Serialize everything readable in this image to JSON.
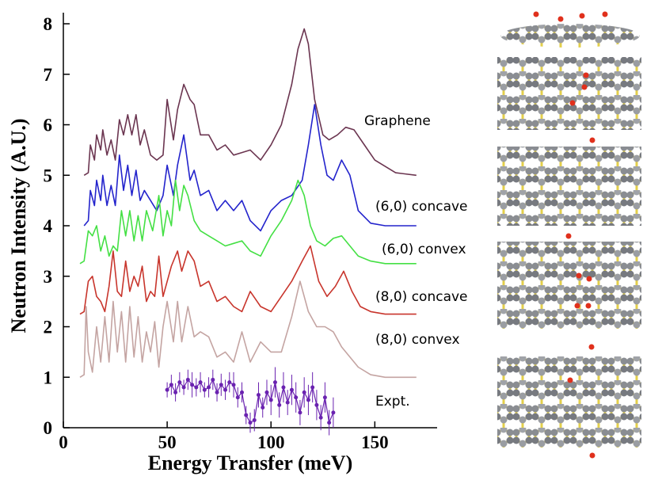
{
  "chart_data": {
    "type": "line",
    "xlabel": "Energy Transfer (meV)",
    "ylabel": "Neutron Intensity (A.U.)",
    "xlim": [
      0,
      180
    ],
    "ylim": [
      0,
      8
    ],
    "xticks": [
      0,
      50,
      100,
      150
    ],
    "yticks": [
      0,
      1,
      2,
      3,
      4,
      5,
      6,
      7,
      8
    ],
    "series": [
      {
        "name": "Graphene",
        "color": "#6b3550",
        "x": [
          10,
          12,
          13,
          15,
          16,
          18,
          19,
          21,
          23,
          25,
          27,
          29,
          31,
          33,
          35,
          37,
          39,
          42,
          45,
          48,
          50,
          53,
          55,
          58,
          61,
          63,
          66,
          70,
          74,
          78,
          82,
          86,
          90,
          95,
          100,
          105,
          110,
          113,
          116,
          118,
          121,
          125,
          128,
          132,
          136,
          140,
          145,
          150,
          160,
          170
        ],
        "values": [
          5.0,
          5.05,
          5.6,
          5.3,
          5.8,
          5.5,
          5.9,
          5.4,
          5.7,
          5.3,
          6.1,
          5.8,
          6.2,
          5.8,
          6.2,
          5.6,
          5.9,
          5.4,
          5.3,
          5.4,
          6.5,
          5.7,
          6.3,
          6.8,
          6.5,
          6.4,
          5.8,
          5.8,
          5.5,
          5.6,
          5.4,
          5.45,
          5.5,
          5.3,
          5.6,
          6.0,
          6.8,
          7.5,
          7.9,
          7.6,
          6.5,
          5.8,
          5.7,
          5.8,
          5.95,
          5.9,
          5.6,
          5.3,
          5.05,
          5.0
        ]
      },
      {
        "name": "(6,0) concave",
        "color": "#2323cc",
        "x": [
          10,
          12,
          13,
          15,
          16,
          18,
          19,
          21,
          23,
          25,
          27,
          29,
          31,
          33,
          35,
          37,
          39,
          42,
          45,
          48,
          50,
          53,
          55,
          58,
          61,
          63,
          66,
          70,
          74,
          78,
          82,
          86,
          90,
          95,
          100,
          105,
          110,
          115,
          118,
          121,
          124,
          127,
          130,
          134,
          138,
          142,
          148,
          155,
          162,
          170
        ],
        "values": [
          4.0,
          4.1,
          4.7,
          4.4,
          4.9,
          4.5,
          5.0,
          4.4,
          4.8,
          4.4,
          5.4,
          4.7,
          5.2,
          4.6,
          5.1,
          4.5,
          4.7,
          4.5,
          4.3,
          4.6,
          5.2,
          4.6,
          5.2,
          5.8,
          4.9,
          5.1,
          4.6,
          4.7,
          4.3,
          4.5,
          4.3,
          4.5,
          4.1,
          3.9,
          4.3,
          4.5,
          4.6,
          4.9,
          5.6,
          6.4,
          5.6,
          5.0,
          4.9,
          5.3,
          5.0,
          4.3,
          4.05,
          4.0,
          4.0,
          4.0
        ]
      },
      {
        "name": "(6,0) convex",
        "color": "#44e044",
        "x": [
          8,
          10,
          12,
          14,
          16,
          18,
          20,
          22,
          24,
          26,
          28,
          30,
          32,
          34,
          36,
          38,
          40,
          43,
          46,
          48,
          50,
          52,
          54,
          56,
          58,
          60,
          63,
          66,
          70,
          74,
          78,
          82,
          86,
          90,
          95,
          100,
          105,
          110,
          113,
          116,
          119,
          122,
          126,
          130,
          134,
          138,
          142,
          148,
          155,
          170
        ],
        "values": [
          3.25,
          3.3,
          3.9,
          3.8,
          4.0,
          3.5,
          3.8,
          3.4,
          3.6,
          3.5,
          4.3,
          3.8,
          4.3,
          3.7,
          4.2,
          3.7,
          4.3,
          3.9,
          4.6,
          3.8,
          4.3,
          4.0,
          4.9,
          4.3,
          4.8,
          4.6,
          4.1,
          3.9,
          3.8,
          3.7,
          3.6,
          3.65,
          3.7,
          3.5,
          3.4,
          3.8,
          4.1,
          4.5,
          4.9,
          4.6,
          4.0,
          3.7,
          3.6,
          3.75,
          3.8,
          3.6,
          3.4,
          3.3,
          3.25,
          3.25
        ]
      },
      {
        "name": "(8,0) concave",
        "color": "#c8352c",
        "x": [
          8,
          10,
          12,
          14,
          16,
          18,
          20,
          22,
          24,
          26,
          28,
          30,
          32,
          34,
          36,
          38,
          40,
          42,
          44,
          46,
          48,
          52,
          55,
          57,
          60,
          63,
          66,
          70,
          74,
          78,
          82,
          86,
          90,
          95,
          100,
          105,
          110,
          115,
          119,
          123,
          127,
          131,
          135,
          139,
          143,
          148,
          155,
          170
        ],
        "values": [
          2.25,
          2.3,
          2.9,
          3.0,
          2.6,
          2.5,
          2.3,
          2.8,
          3.5,
          2.7,
          2.6,
          3.3,
          2.7,
          3.0,
          2.8,
          3.2,
          2.5,
          2.7,
          2.6,
          3.4,
          2.6,
          3.2,
          3.5,
          3.1,
          3.5,
          3.3,
          2.8,
          2.9,
          2.5,
          2.6,
          2.4,
          2.3,
          2.7,
          2.4,
          2.3,
          2.6,
          2.9,
          3.3,
          3.6,
          2.9,
          2.6,
          2.8,
          3.1,
          2.7,
          2.4,
          2.3,
          2.25,
          2.25
        ]
      },
      {
        "name": "(8,0) convex",
        "color": "#c4a4a2",
        "x": [
          8,
          10,
          11,
          12,
          14,
          16,
          18,
          20,
          22,
          24,
          26,
          28,
          30,
          32,
          34,
          36,
          38,
          40,
          42,
          44,
          46,
          48,
          50,
          53,
          55,
          57,
          60,
          63,
          66,
          70,
          74,
          78,
          82,
          86,
          90,
          95,
          100,
          105,
          110,
          114,
          118,
          122,
          126,
          130,
          134,
          138,
          142,
          148,
          155,
          170
        ],
        "values": [
          1.0,
          1.05,
          2.4,
          1.5,
          1.1,
          2.0,
          1.3,
          2.2,
          1.3,
          2.5,
          1.5,
          2.3,
          1.3,
          2.4,
          1.4,
          2.2,
          1.3,
          1.9,
          1.5,
          2.1,
          1.2,
          2.0,
          2.5,
          1.7,
          2.5,
          1.7,
          2.4,
          1.8,
          1.9,
          1.8,
          1.4,
          1.5,
          1.3,
          1.9,
          1.3,
          1.7,
          1.5,
          1.5,
          2.2,
          2.9,
          2.3,
          2.0,
          2.0,
          1.9,
          1.6,
          1.4,
          1.2,
          1.05,
          1.0,
          1.0
        ]
      },
      {
        "name": "Expt.",
        "color": "#6a22b0",
        "x": [
          50,
          52,
          54,
          56,
          58,
          60,
          62,
          64,
          66,
          68,
          70,
          72,
          74,
          76,
          78,
          80,
          82,
          84,
          86,
          88,
          90,
          92,
          94,
          96,
          98,
          100,
          102,
          104,
          106,
          108,
          110,
          112,
          114,
          116,
          118,
          120,
          122,
          124,
          126,
          128,
          130
        ],
        "values": [
          0.75,
          0.85,
          0.7,
          0.9,
          0.8,
          0.95,
          0.85,
          0.8,
          0.9,
          0.75,
          0.8,
          0.95,
          0.7,
          0.85,
          0.75,
          0.9,
          0.85,
          0.6,
          0.7,
          0.25,
          0.1,
          0.15,
          0.65,
          0.4,
          0.7,
          0.55,
          0.9,
          0.45,
          0.8,
          0.5,
          0.75,
          0.6,
          0.3,
          0.7,
          0.55,
          0.8,
          0.45,
          0.2,
          0.6,
          0.1,
          0.3
        ],
        "errors": [
          0.15,
          0.2,
          0.18,
          0.2,
          0.15,
          0.2,
          0.25,
          0.18,
          0.2,
          0.15,
          0.2,
          0.2,
          0.18,
          0.22,
          0.2,
          0.2,
          0.25,
          0.2,
          0.2,
          0.18,
          0.2,
          0.22,
          0.25,
          0.2,
          0.25,
          0.3,
          0.3,
          0.25,
          0.3,
          0.25,
          0.3,
          0.3,
          0.25,
          0.3,
          0.3,
          0.3,
          0.3,
          0.25,
          0.3,
          0.25,
          0.3
        ]
      }
    ]
  }
}
